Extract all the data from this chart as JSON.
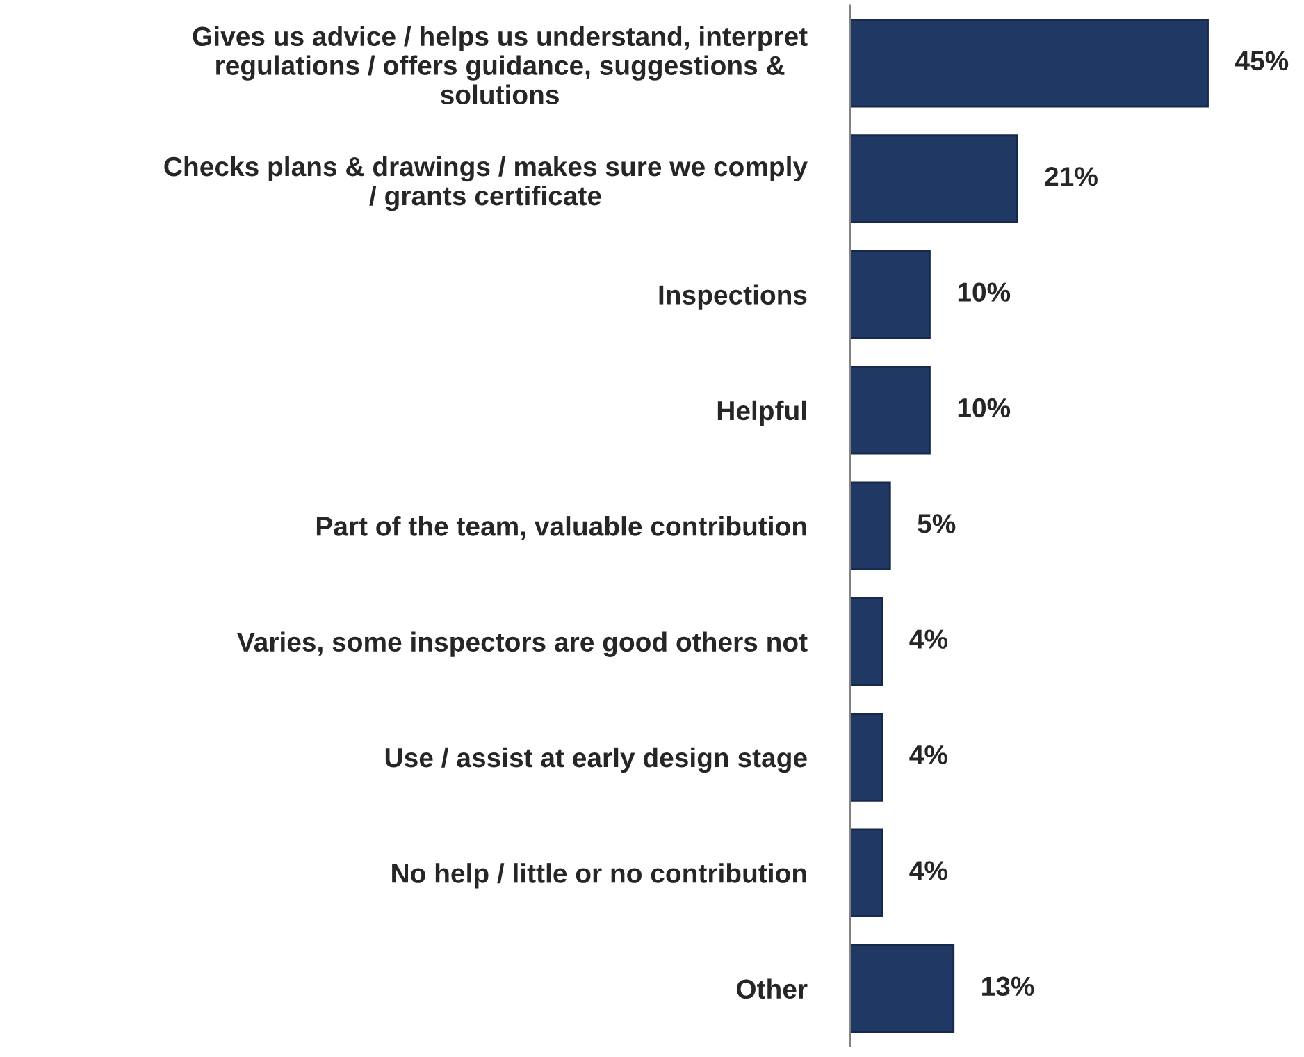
{
  "chart_data": {
    "type": "bar",
    "orientation": "horizontal",
    "categories": [
      "Gives us advice / helps us understand, interpret\nregulations / offers guidance, suggestions &\nsolutions",
      "Checks plans & drawings / makes sure we comply\n/ grants certificate",
      "Inspections",
      "Helpful",
      "Part of the team, valuable contribution",
      "Varies, some inspectors are good others not",
      "Use / assist at early design stage",
      "No help / little or no contribution",
      "Other"
    ],
    "values": [
      45,
      21,
      10,
      10,
      5,
      4,
      4,
      4,
      13
    ],
    "value_labels": [
      "45%",
      "21%",
      "10%",
      "10%",
      "5%",
      "4%",
      "4%",
      "4%",
      "13%"
    ],
    "color": "#1f3864",
    "grid": false,
    "legend": false
  }
}
